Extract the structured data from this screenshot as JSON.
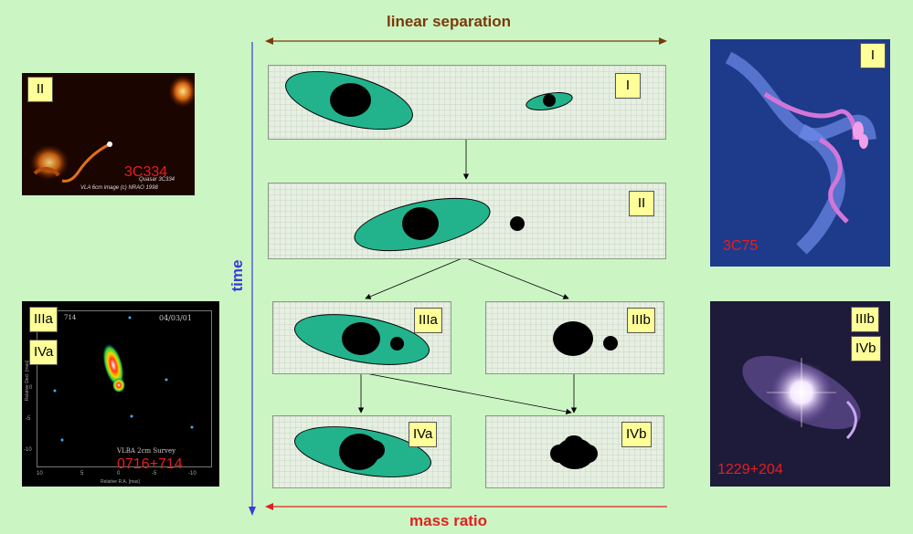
{
  "header": {
    "linear_separation": "linear separation",
    "mass_ratio": "mass ratio",
    "time": "time"
  },
  "stages": {
    "I": "I",
    "II": "II",
    "IIIa": "IIIa",
    "IIIb": "IIIb",
    "IVa": "IVa",
    "IVb": "IVb"
  },
  "images": {
    "top_left": {
      "tag": "II",
      "name": "3C334",
      "caption_line1": "Quasar 3C334",
      "caption_line2": "VLA 6cm image (c) NRAO 1998"
    },
    "bottom_left": {
      "tag1": "IIIa",
      "tag2": "IVa",
      "name": "0716+714",
      "survey": "VLBA 2cm Survey",
      "date": "04/03/01",
      "partial_id": "714",
      "ylabel": "Relative Decl. [mas]",
      "xlabel": "Relative R.A. [mas]",
      "xticks": [
        "10",
        "5",
        "0",
        "-5",
        "-10"
      ],
      "yticks": [
        "5",
        "0",
        "-5",
        "-10"
      ]
    },
    "top_right": {
      "tag": "I",
      "name": "3C75"
    },
    "bottom_right": {
      "tag1": "IIIb",
      "tag2": "IVb",
      "name": "1229+204"
    }
  },
  "colors": {
    "background": "#ccf5c4",
    "galaxy_fill": "#22b38c",
    "tag_fill": "#ffff99",
    "linear_separation": "#7a3a08",
    "mass_ratio": "#e02020",
    "time": "#3b3bd6",
    "image_label": "#e81e1e"
  }
}
